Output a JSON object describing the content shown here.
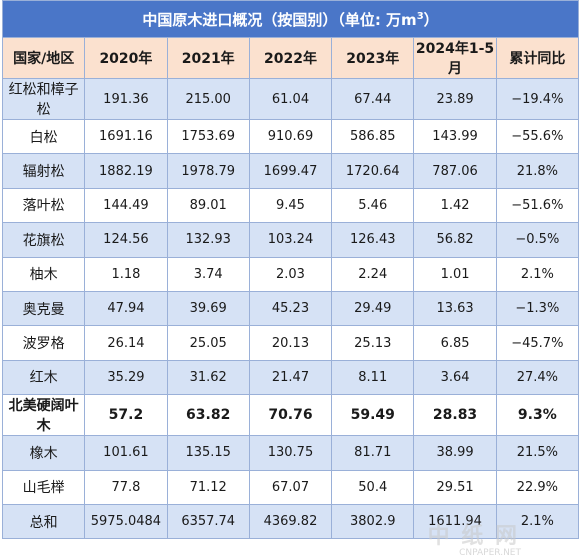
{
  "chart_data": {
    "type": "table",
    "title": "中国原木进口概况（按国别）（单位: 万m³）",
    "title_main": "中国原木进口概况（按国别）（单位: 万m",
    "title_sup": "3",
    "title_tail": "）",
    "columns": [
      "国家/地区",
      "2020年",
      "2021年",
      "2022年",
      "2023年",
      "2024年1-5月",
      "累计同比"
    ],
    "rows": [
      [
        "红松和樟子松",
        "191.36",
        "215.00",
        "61.04",
        "67.44",
        "23.89",
        "−19.4%"
      ],
      [
        "白松",
        "1691.16",
        "1753.69",
        "910.69",
        "586.85",
        "143.99",
        "−55.6%"
      ],
      [
        "辐射松",
        "1882.19",
        "1978.79",
        "1699.47",
        "1720.64",
        "787.06",
        "21.8%"
      ],
      [
        "落叶松",
        "144.49",
        "89.01",
        "9.45",
        "5.46",
        "1.42",
        "−51.6%"
      ],
      [
        "花旗松",
        "124.56",
        "132.93",
        "103.24",
        "126.43",
        "56.82",
        "−0.5%"
      ],
      [
        "柚木",
        "1.18",
        "3.74",
        "2.03",
        "2.24",
        "1.01",
        "2.1%"
      ],
      [
        "奥克曼",
        "47.94",
        "39.69",
        "45.23",
        "29.49",
        "13.63",
        "−1.3%"
      ],
      [
        "波罗格",
        "26.14",
        "25.05",
        "20.13",
        "25.13",
        "6.85",
        "−45.7%"
      ],
      [
        "红木",
        "35.29",
        "31.62",
        "21.47",
        "8.11",
        "3.64",
        "27.4%"
      ],
      [
        "北美硬阔叶木",
        "57.2",
        "63.82",
        "70.76",
        "59.49",
        "28.83",
        "9.3%"
      ],
      [
        "橡木",
        "101.61",
        "135.15",
        "130.75",
        "81.71",
        "38.99",
        "21.5%"
      ],
      [
        "山毛榉",
        "77.8",
        "71.12",
        "67.07",
        "50.4",
        "29.51",
        "22.9%"
      ],
      [
        "总和",
        "5975.0484",
        "6357.74",
        "4369.82",
        "3802.9",
        "1611.94",
        "2.1%"
      ]
    ],
    "bold_row_index": 9
  },
  "colors": {
    "title_bg": "#4a76c8",
    "header_bg": "#fbe1cf",
    "alt_row_bg": "#d6e2f5",
    "border": "#9ab0d8"
  },
  "watermark": {
    "text": "中 纸 网",
    "sub": "CNPAPER.NET"
  }
}
